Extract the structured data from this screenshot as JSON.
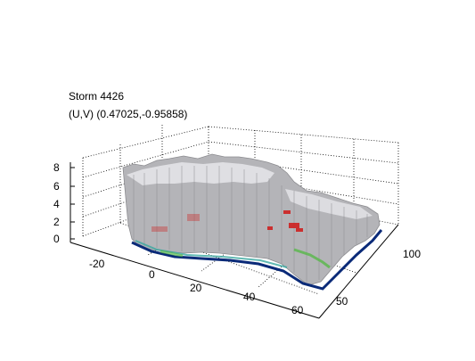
{
  "figure": {
    "title_line_1": "Storm 4426",
    "title_line_2": "(U,V) (0.47025,-0.95858)"
  },
  "axes": {
    "z_ticks": [
      "8",
      "6",
      "4",
      "2",
      "0"
    ],
    "x_ticks": [
      "-20",
      "0",
      "20",
      "40",
      "60"
    ],
    "y_ticks": [
      "100",
      "50"
    ]
  },
  "colors": {
    "surface_gray": "#b4b4b8",
    "surface_light": "#e6e6ea",
    "rain_red": "#d01818",
    "base_blue": "#0a2a78",
    "base_teal": "#3aa8a0",
    "base_green": "#58b848",
    "grid": "#000000"
  }
}
